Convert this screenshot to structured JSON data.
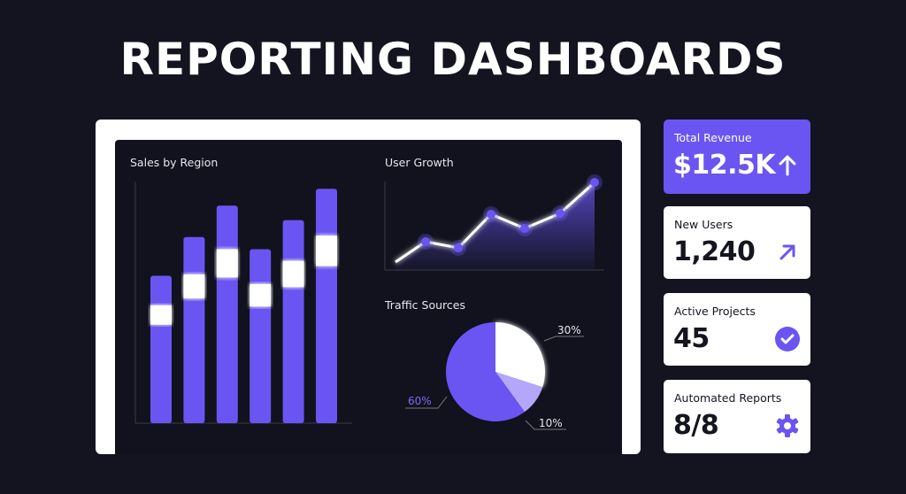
{
  "title": "REPORTING DASHBOARDS",
  "colors": {
    "background": "#141420",
    "accent": "#6a55f2",
    "accent_light": "#b3a6fb",
    "panel": "#11121d"
  },
  "chart_data": [
    {
      "type": "bar",
      "title": "Sales by Region",
      "categories": [
        "",
        "",
        "",
        "",
        "",
        ""
      ],
      "values": [
        61,
        77,
        90,
        72,
        84,
        97
      ],
      "ylim": [
        0,
        100
      ],
      "grid": false
    },
    {
      "type": "area",
      "title": "User Growth",
      "x": [
        1,
        2,
        3,
        4,
        5,
        6,
        7
      ],
      "values": [
        9,
        32,
        25,
        63,
        47,
        64,
        99
      ],
      "ylim": [
        0,
        100
      ],
      "grid": false
    },
    {
      "type": "pie",
      "title": "Traffic Sources",
      "values": [
        30,
        10,
        60
      ],
      "labels": [
        "30%",
        "10%",
        "60%"
      ],
      "colors": [
        "#ffffff",
        "#b3a6fb",
        "#6a55f2"
      ]
    }
  ],
  "cards": [
    {
      "label": "Total Revenue",
      "value": "$12.5K",
      "icon": "arrow-up-icon"
    },
    {
      "label": "New Users",
      "value": "1,240",
      "icon": "arrow-up-right-icon"
    },
    {
      "label": "Active Projects",
      "value": "45",
      "icon": "check-circle-icon"
    },
    {
      "label": "Automated Reports",
      "value": "8/8",
      "icon": "gear-icon"
    }
  ]
}
